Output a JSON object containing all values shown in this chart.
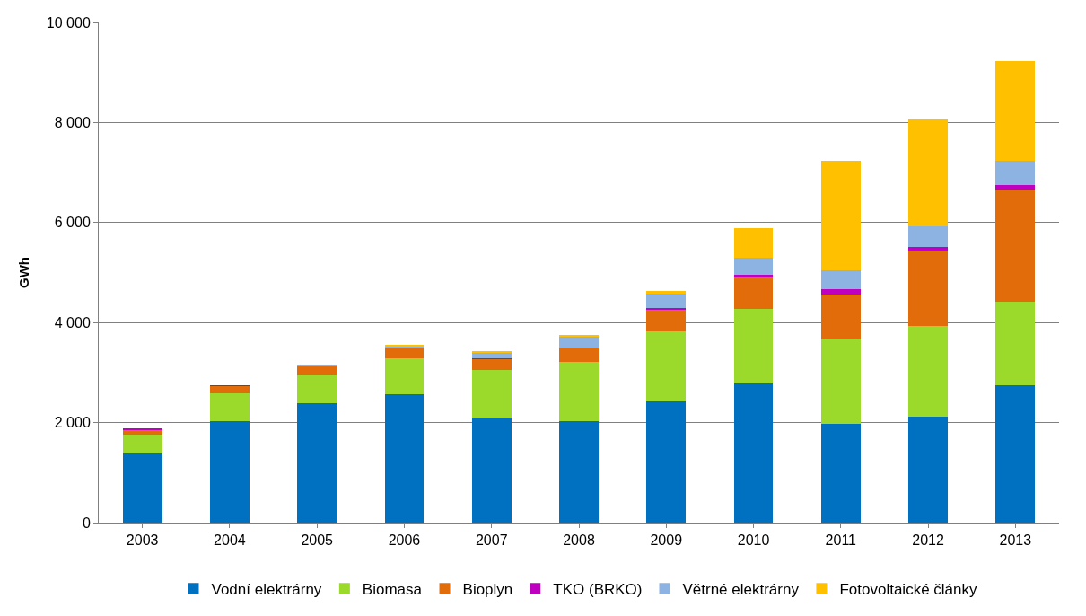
{
  "chart_data": {
    "type": "bar",
    "stacked": true,
    "ylabel": "GWh",
    "categories": [
      "2003",
      "2004",
      "2005",
      "2006",
      "2007",
      "2008",
      "2009",
      "2010",
      "2011",
      "2012",
      "2013"
    ],
    "series": [
      {
        "name": "Vodní elektrárny",
        "color": "#0070c0",
        "values": [
          1380,
          2020,
          2390,
          2560,
          2100,
          2030,
          2430,
          2780,
          1970,
          2120,
          2740
        ]
      },
      {
        "name": "Biomasa",
        "color": "#9bd92b",
        "values": [
          380,
          560,
          560,
          730,
          960,
          1180,
          1400,
          1500,
          1690,
          1820,
          1670
        ]
      },
      {
        "name": "Bioplyn",
        "color": "#e36c0a",
        "values": [
          100,
          150,
          180,
          190,
          210,
          270,
          420,
          630,
          900,
          1480,
          2230
        ]
      },
      {
        "name": "TKO (BRKO)",
        "color": "#c000c0",
        "values": [
          10,
          10,
          null,
          null,
          10,
          null,
          40,
          50,
          110,
          90,
          110
        ]
      },
      {
        "name": "Větrné elektrárny",
        "color": "#8db3e2",
        "values": [
          0,
          0,
          20,
          50,
          130,
          250,
          280,
          340,
          380,
          420,
          480
        ]
      },
      {
        "name": "Fotovoltaické články",
        "color": "#ffc000",
        "values": [
          0,
          0,
          0,
          20,
          20,
          20,
          70,
          590,
          2190,
          2130,
          2000
        ]
      }
    ],
    "ylim": [
      0,
      10000
    ],
    "yticks": [
      {
        "value": 0,
        "label": "0"
      },
      {
        "value": 2000,
        "label": "2 000"
      },
      {
        "value": 4000,
        "label": "4 000"
      },
      {
        "value": 6000,
        "label": "6 000"
      },
      {
        "value": 8000,
        "label": "8 000"
      },
      {
        "value": 10000,
        "label": "10 000"
      }
    ],
    "grid": "y",
    "legend": "bottom"
  }
}
